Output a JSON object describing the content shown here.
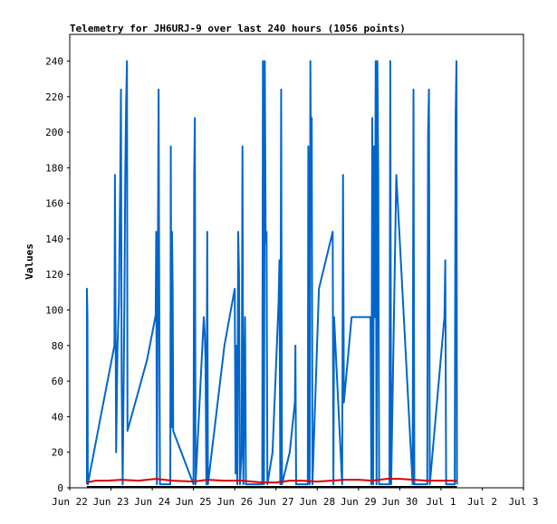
{
  "chart_data": {
    "type": "line",
    "title": "Telemetry for JH6URJ-9 over last 240 hours (1056 points)",
    "xlabel": "",
    "ylabel": "Values",
    "xlim": [
      0,
      264
    ],
    "ylim": [
      0,
      255
    ],
    "x_unit": "hours since Jun 22 00:00",
    "x_ticks": [
      {
        "value": 0,
        "label": "Jun 22"
      },
      {
        "value": 24,
        "label": "Jun 23"
      },
      {
        "value": 48,
        "label": "Jun 24"
      },
      {
        "value": 72,
        "label": "Jun 25"
      },
      {
        "value": 96,
        "label": "Jun 26"
      },
      {
        "value": 120,
        "label": "Jun 27"
      },
      {
        "value": 144,
        "label": "Jun 28"
      },
      {
        "value": 168,
        "label": "Jun 29"
      },
      {
        "value": 192,
        "label": "Jun 30"
      },
      {
        "value": 216,
        "label": "Jul 1"
      },
      {
        "value": 240,
        "label": "Jul 2"
      },
      {
        "value": 264,
        "label": "Jul 3"
      }
    ],
    "y_ticks": [
      0,
      20,
      40,
      60,
      80,
      100,
      120,
      140,
      160,
      180,
      200,
      220,
      240
    ],
    "grid": false,
    "legend": "none",
    "series": [
      {
        "color": "#0066cc",
        "points": [
          [
            10,
            2
          ],
          [
            10,
            112
          ],
          [
            10.3,
            96
          ],
          [
            10.5,
            2
          ],
          [
            18,
            40
          ],
          [
            26,
            80
          ],
          [
            26.3,
            176
          ],
          [
            27,
            20
          ],
          [
            27.8,
            80
          ],
          [
            28.6,
            104
          ],
          [
            29.4,
            176
          ],
          [
            29.8,
            224
          ],
          [
            30.2,
            62
          ],
          [
            30.8,
            2
          ],
          [
            31.8,
            104
          ],
          [
            32.3,
            176
          ],
          [
            32.8,
            216
          ],
          [
            33.3,
            240
          ],
          [
            33.6,
            32
          ],
          [
            45,
            72
          ],
          [
            50,
            97
          ],
          [
            50.3,
            144
          ],
          [
            50.7,
            2
          ],
          [
            51.2,
            112
          ],
          [
            51.7,
            224
          ],
          [
            52.1,
            104
          ],
          [
            52.5,
            2
          ],
          [
            58.5,
            2
          ],
          [
            58.8,
            192
          ],
          [
            59.2,
            34
          ],
          [
            59.5,
            144
          ],
          [
            59.9,
            112
          ],
          [
            60.2,
            32
          ],
          [
            72,
            2
          ],
          [
            72.4,
            176
          ],
          [
            72.8,
            208
          ],
          [
            73.2,
            2
          ],
          [
            78,
            96
          ],
          [
            78.5,
            88
          ],
          [
            79,
            72
          ],
          [
            79.5,
            2
          ],
          [
            80,
            144
          ],
          [
            80.4,
            2
          ],
          [
            90,
            80
          ],
          [
            96,
            112
          ],
          [
            96.5,
            8
          ],
          [
            97,
            80
          ],
          [
            97.5,
            2
          ],
          [
            98,
            144
          ],
          [
            98.5,
            120
          ],
          [
            99,
            2
          ],
          [
            100,
            20
          ],
          [
            100.5,
            192
          ],
          [
            101,
            2
          ],
          [
            102,
            96
          ],
          [
            102.5,
            2
          ],
          [
            112,
            2
          ],
          [
            112.4,
            240
          ],
          [
            113,
            2
          ],
          [
            113.5,
            240
          ],
          [
            114,
            138
          ],
          [
            114.5,
            144
          ],
          [
            115,
            2
          ],
          [
            118,
            20
          ],
          [
            121.5,
            104
          ],
          [
            122,
            128
          ],
          [
            122.5,
            2
          ],
          [
            123,
            224
          ],
          [
            123.5,
            2
          ],
          [
            128,
            20
          ],
          [
            131,
            48
          ],
          [
            131.3,
            80
          ],
          [
            131.7,
            2
          ],
          [
            138.5,
            2
          ],
          [
            138.8,
            192
          ],
          [
            139.2,
            144
          ],
          [
            139.6,
            2
          ],
          [
            140,
            240
          ],
          [
            140.4,
            176
          ],
          [
            140.8,
            208
          ],
          [
            141.2,
            2
          ],
          [
            145,
            112
          ],
          [
            153,
            144
          ],
          [
            153.4,
            2
          ],
          [
            153.8,
            96
          ],
          [
            158.5,
            2
          ],
          [
            159,
            176
          ],
          [
            159.5,
            48
          ],
          [
            164,
            96
          ],
          [
            175,
            96
          ],
          [
            175.5,
            2
          ],
          [
            176,
            208
          ],
          [
            176.5,
            2
          ],
          [
            177,
            192
          ],
          [
            177.5,
            96
          ],
          [
            178,
            240
          ],
          [
            178.5,
            2
          ],
          [
            179,
            240
          ],
          [
            179.5,
            176
          ],
          [
            180,
            2
          ],
          [
            186,
            2
          ],
          [
            186.5,
            240
          ],
          [
            187,
            2
          ],
          [
            190,
            176
          ],
          [
            199.5,
            2
          ],
          [
            200,
            224
          ],
          [
            200.5,
            2
          ],
          [
            208,
            2
          ],
          [
            208.5,
            200
          ],
          [
            209,
            224
          ],
          [
            209.5,
            2
          ],
          [
            218,
            96
          ],
          [
            218.5,
            128
          ],
          [
            219,
            2
          ],
          [
            224,
            2
          ],
          [
            224.5,
            208
          ],
          [
            225,
            240
          ],
          [
            225.3,
            2
          ]
        ]
      },
      {
        "color": "#dd0000",
        "points": [
          [
            10,
            3
          ],
          [
            15,
            4
          ],
          [
            22,
            4
          ],
          [
            30,
            4.5
          ],
          [
            40,
            4
          ],
          [
            50,
            5
          ],
          [
            60,
            4
          ],
          [
            72,
            3.5
          ],
          [
            80,
            4.5
          ],
          [
            90,
            4
          ],
          [
            100,
            4
          ],
          [
            112,
            3
          ],
          [
            120,
            3
          ],
          [
            128,
            4
          ],
          [
            135,
            4
          ],
          [
            144,
            3.5
          ],
          [
            152,
            4
          ],
          [
            160,
            4.5
          ],
          [
            168,
            4.5
          ],
          [
            176,
            4
          ],
          [
            184,
            5
          ],
          [
            192,
            5
          ],
          [
            200,
            4.5
          ],
          [
            208,
            4
          ],
          [
            216,
            4
          ],
          [
            225,
            4
          ]
        ]
      },
      {
        "color": "#000000",
        "points": [
          [
            10,
            0.5
          ],
          [
            225.3,
            0.5
          ]
        ]
      }
    ]
  }
}
